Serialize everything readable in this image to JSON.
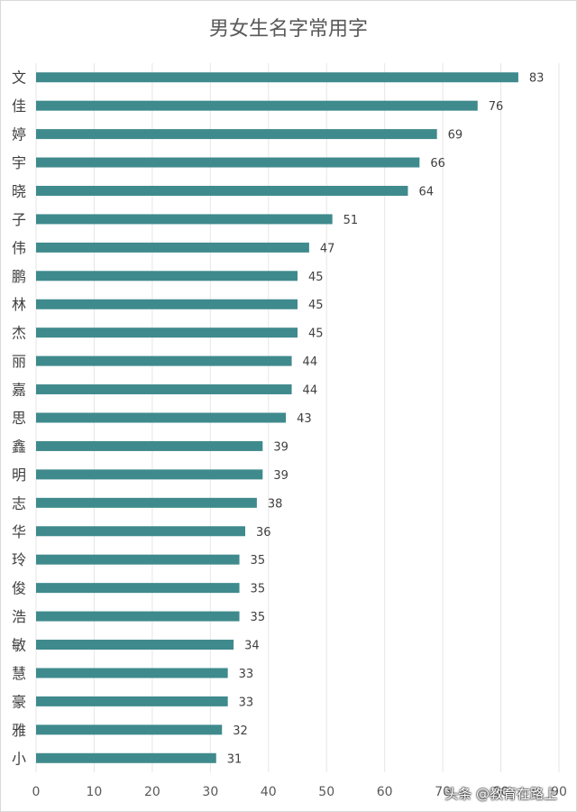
{
  "watermark": "头条 @教育在路上",
  "chart_data": {
    "type": "bar",
    "orientation": "horizontal",
    "title": "男女生名字常用字",
    "categories": [
      "文",
      "佳",
      "婷",
      "宇",
      "晓",
      "子",
      "伟",
      "鹏",
      "林",
      "杰",
      "丽",
      "嘉",
      "思",
      "鑫",
      "明",
      "志",
      "华",
      "玲",
      "俊",
      "浩",
      "敏",
      "慧",
      "豪",
      "雅",
      "小"
    ],
    "values": [
      83,
      76,
      69,
      66,
      64,
      51,
      47,
      45,
      45,
      45,
      44,
      44,
      43,
      39,
      39,
      38,
      36,
      35,
      35,
      35,
      34,
      33,
      33,
      32,
      31
    ],
    "xlim": [
      0,
      90
    ],
    "xticks": [
      0,
      10,
      20,
      30,
      40,
      50,
      60,
      70,
      80,
      90
    ],
    "grid": true,
    "data_labels": true,
    "bar_color": "#3f8a8c",
    "grid_color": "#e6e6e6"
  }
}
